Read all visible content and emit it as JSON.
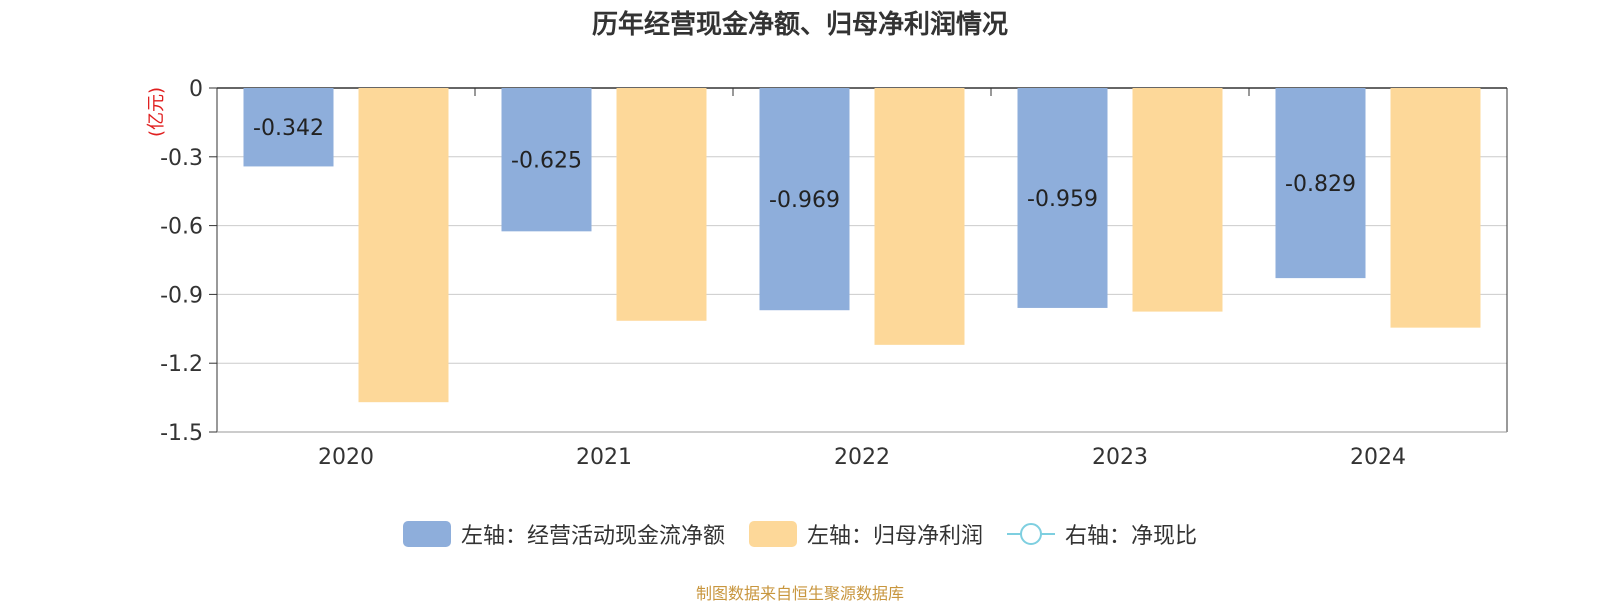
{
  "title": "历年经营现金净额、归母净利润情况",
  "unit_label": "(亿元)",
  "source": "制图数据来自恒生聚源数据库",
  "colors": {
    "series1": "#8eaedb",
    "series2": "#fdd899",
    "series3": "#7ecfe0",
    "unit": "#e02020"
  },
  "legend": [
    {
      "label": "左轴：经营活动现金流净额",
      "type": "bar",
      "color": "#8eaedb"
    },
    {
      "label": "左轴：归母净利润",
      "type": "bar",
      "color": "#fdd899"
    },
    {
      "label": "右轴：净现比",
      "type": "line",
      "color": "#7ecfe0"
    }
  ],
  "chart_data": {
    "type": "bar",
    "title": "历年经营现金净额、归母净利润情况",
    "categories": [
      "2020",
      "2021",
      "2022",
      "2023",
      "2024"
    ],
    "ylim": [
      -1.5,
      0
    ],
    "yticks": [
      "0",
      "-0.3",
      "-0.6",
      "-0.9",
      "-1.2",
      "-1.5"
    ],
    "ylabel": "(亿元)",
    "grid": true,
    "legend_position": "bottom",
    "series": [
      {
        "name": "左轴：经营活动现金流净额",
        "values": [
          -0.342,
          -0.625,
          -0.969,
          -0.959,
          -0.829
        ],
        "labels": [
          "-0.342",
          "-0.625",
          "-0.969",
          "-0.959",
          "-0.829"
        ]
      },
      {
        "name": "左轴：归母净利润",
        "values": [
          -1.37,
          -1.015,
          -1.12,
          -0.975,
          -1.045
        ]
      }
    ]
  }
}
